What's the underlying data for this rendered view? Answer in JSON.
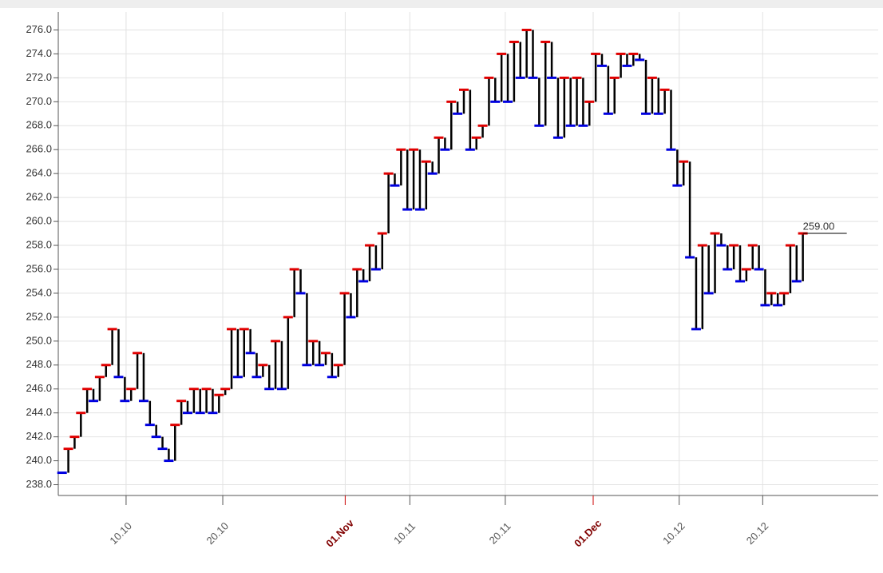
{
  "chart_data": {
    "type": "step",
    "values": [
      239,
      241,
      242,
      244,
      246,
      245,
      247,
      248,
      251,
      247,
      245,
      246,
      249,
      245,
      243,
      242,
      241,
      240,
      243,
      245,
      244,
      246,
      244,
      246,
      244,
      245.5,
      246,
      251,
      247,
      251,
      249,
      247,
      248,
      246,
      250,
      246,
      252,
      256,
      254,
      248,
      250,
      248,
      249,
      247,
      248,
      254,
      252,
      256,
      255,
      258,
      256,
      259,
      264,
      263,
      266,
      261,
      266,
      261,
      265,
      264,
      267,
      266,
      270,
      269,
      271,
      266,
      267,
      268,
      272,
      270,
      274,
      270,
      275,
      272,
      276,
      272,
      268,
      275,
      272,
      267,
      272,
      268,
      272,
      268,
      270,
      274,
      273,
      269,
      272,
      274,
      273,
      274,
      273.5,
      269,
      272,
      269,
      271,
      266,
      263,
      265,
      257,
      251,
      258,
      254,
      259,
      258,
      256,
      258,
      255,
      256,
      258,
      256,
      253,
      254,
      253,
      254,
      258,
      255,
      259
    ],
    "up_color": "#e00000",
    "down_color": "#0000e0",
    "line_color": "#000000",
    "last_value_label": "259.00",
    "xlim": [
      -0.6,
      130
    ],
    "xticks": [
      {
        "value": 10.2,
        "label": "10.10"
      },
      {
        "value": 25.6,
        "label": "20.10"
      },
      {
        "value": 45.1,
        "label": "01.Nov",
        "emphasis": true
      },
      {
        "value": 55.4,
        "label": "10.11"
      },
      {
        "value": 70.6,
        "label": "20.11"
      },
      {
        "value": 84.6,
        "label": "01.Dec",
        "emphasis": true
      },
      {
        "value": 98.3,
        "label": "10.12"
      },
      {
        "value": 111.6,
        "label": "20.12"
      }
    ],
    "ylim": [
      237.1,
      277.5
    ],
    "yticks": [
      {
        "value": 238,
        "label": "238.0"
      },
      {
        "value": 240,
        "label": "240.0"
      },
      {
        "value": 242,
        "label": "242.0"
      },
      {
        "value": 244,
        "label": "244.0"
      },
      {
        "value": 246,
        "label": "246.0"
      },
      {
        "value": 248,
        "label": "248.0"
      },
      {
        "value": 250,
        "label": "250.0"
      },
      {
        "value": 252,
        "label": "252.0"
      },
      {
        "value": 254,
        "label": "254.0"
      },
      {
        "value": 256,
        "label": "256.0"
      },
      {
        "value": 258,
        "label": "258.0"
      },
      {
        "value": 260,
        "label": "260.0"
      },
      {
        "value": 262,
        "label": "262.0"
      },
      {
        "value": 264,
        "label": "264.0"
      },
      {
        "value": 266,
        "label": "266.0"
      },
      {
        "value": 268,
        "label": "268.0"
      },
      {
        "value": 270,
        "label": "270.0"
      },
      {
        "value": 272,
        "label": "272.0"
      },
      {
        "value": 274,
        "label": "274.0"
      },
      {
        "value": 276,
        "label": "276.0"
      }
    ],
    "grid": true
  }
}
